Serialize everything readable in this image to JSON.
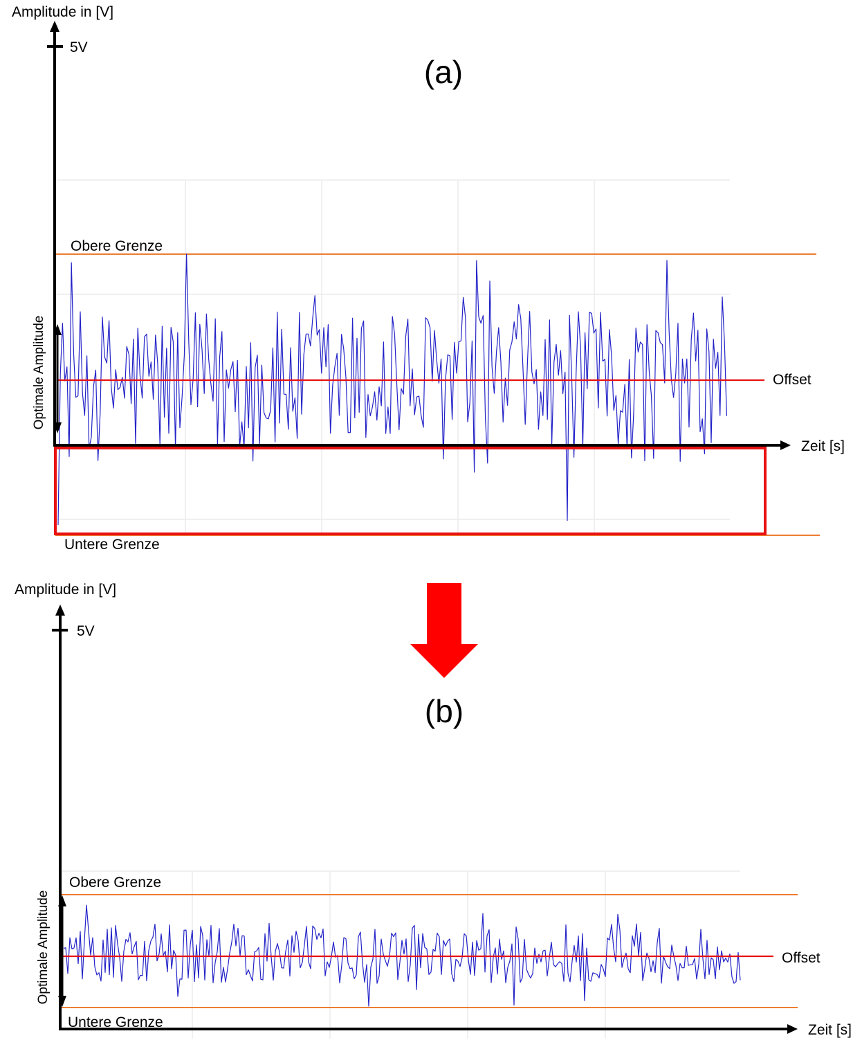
{
  "colors": {
    "signal": "#2323c8",
    "offset": "#e81212",
    "limits": "#ed7d31",
    "axis": "#000000",
    "highlight_box": "#e81212",
    "arrow": "#ff0000",
    "grid": "#ececec"
  },
  "arrow_icon": "down-arrow-icon",
  "panel_a": {
    "panel_label": "(a)",
    "y_axis_label": "Amplitude in [V]",
    "x_axis_label": "Zeit [s]",
    "top_tick_label": "5V",
    "upper_limit_label": "Obere Grenze",
    "lower_limit_label": "Untere Grenze",
    "offset_label": "Offset",
    "optimal_amplitude_label": "Optimale Amplitude"
  },
  "panel_b": {
    "panel_label": "(b)",
    "y_axis_label": "Amplitude in [V]",
    "x_axis_label": "Zeit [s]",
    "top_tick_label": "5V",
    "upper_limit_label": "Obere Grenze",
    "lower_limit_label": "Untere Grenze",
    "offset_label": "Offset",
    "optimal_amplitude_label": "Optimale Amplitude"
  }
}
